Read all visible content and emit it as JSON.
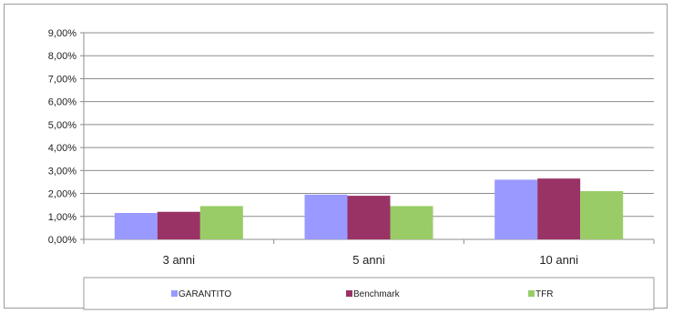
{
  "chart_data": {
    "type": "bar",
    "categories": [
      "3 anni",
      "5 anni",
      "10 anni"
    ],
    "series": [
      {
        "name": "GARANTITO",
        "values": [
          1.15,
          1.95,
          2.6
        ],
        "color": "#9999ff"
      },
      {
        "name": "Benchmark",
        "values": [
          1.2,
          1.9,
          2.65
        ],
        "color": "#993366"
      },
      {
        "name": "TFR",
        "values": [
          1.45,
          1.45,
          2.1
        ],
        "color": "#99cc66"
      }
    ],
    "yticks": [
      "0,00%",
      "1,00%",
      "2,00%",
      "3,00%",
      "4,00%",
      "5,00%",
      "6,00%",
      "7,00%",
      "8,00%",
      "9,00%"
    ],
    "ylim": [
      0,
      9
    ],
    "ystep": 1,
    "grid": true,
    "legend_position": "bottom",
    "title": "",
    "xlabel": "",
    "ylabel": ""
  }
}
